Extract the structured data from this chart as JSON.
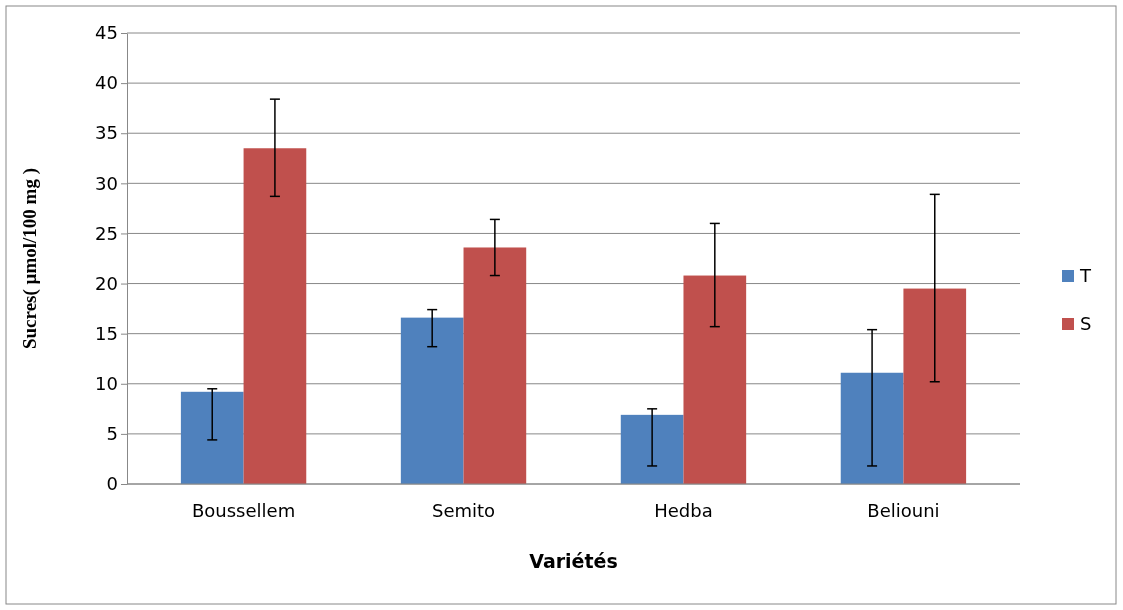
{
  "chart_data": {
    "type": "bar",
    "xlabel": "Variétés",
    "ylabel": "Sucres(  µmol/100 mg )",
    "categories": [
      "Boussellem",
      "Semito",
      "Hedba",
      "Beliouni"
    ],
    "series": [
      {
        "name": "T",
        "color": "#4f81bd",
        "values": [
          9.2,
          16.6,
          6.9,
          11.1
        ],
        "errors": [
          [
            4.4,
            9.5
          ],
          [
            13.7,
            17.4
          ],
          [
            1.8,
            7.5
          ],
          [
            1.8,
            15.4
          ]
        ]
      },
      {
        "name": "S",
        "color": "#c0504d",
        "values": [
          33.5,
          23.6,
          20.8,
          19.5
        ],
        "errors": [
          [
            28.7,
            38.4
          ],
          [
            20.8,
            26.4
          ],
          [
            15.7,
            26.0
          ],
          [
            10.2,
            28.9
          ]
        ]
      }
    ],
    "ylim": [
      0,
      45
    ],
    "yticks": [
      0,
      5,
      10,
      15,
      20,
      25,
      30,
      35,
      40,
      45
    ],
    "grid": "y",
    "legend": "right"
  }
}
